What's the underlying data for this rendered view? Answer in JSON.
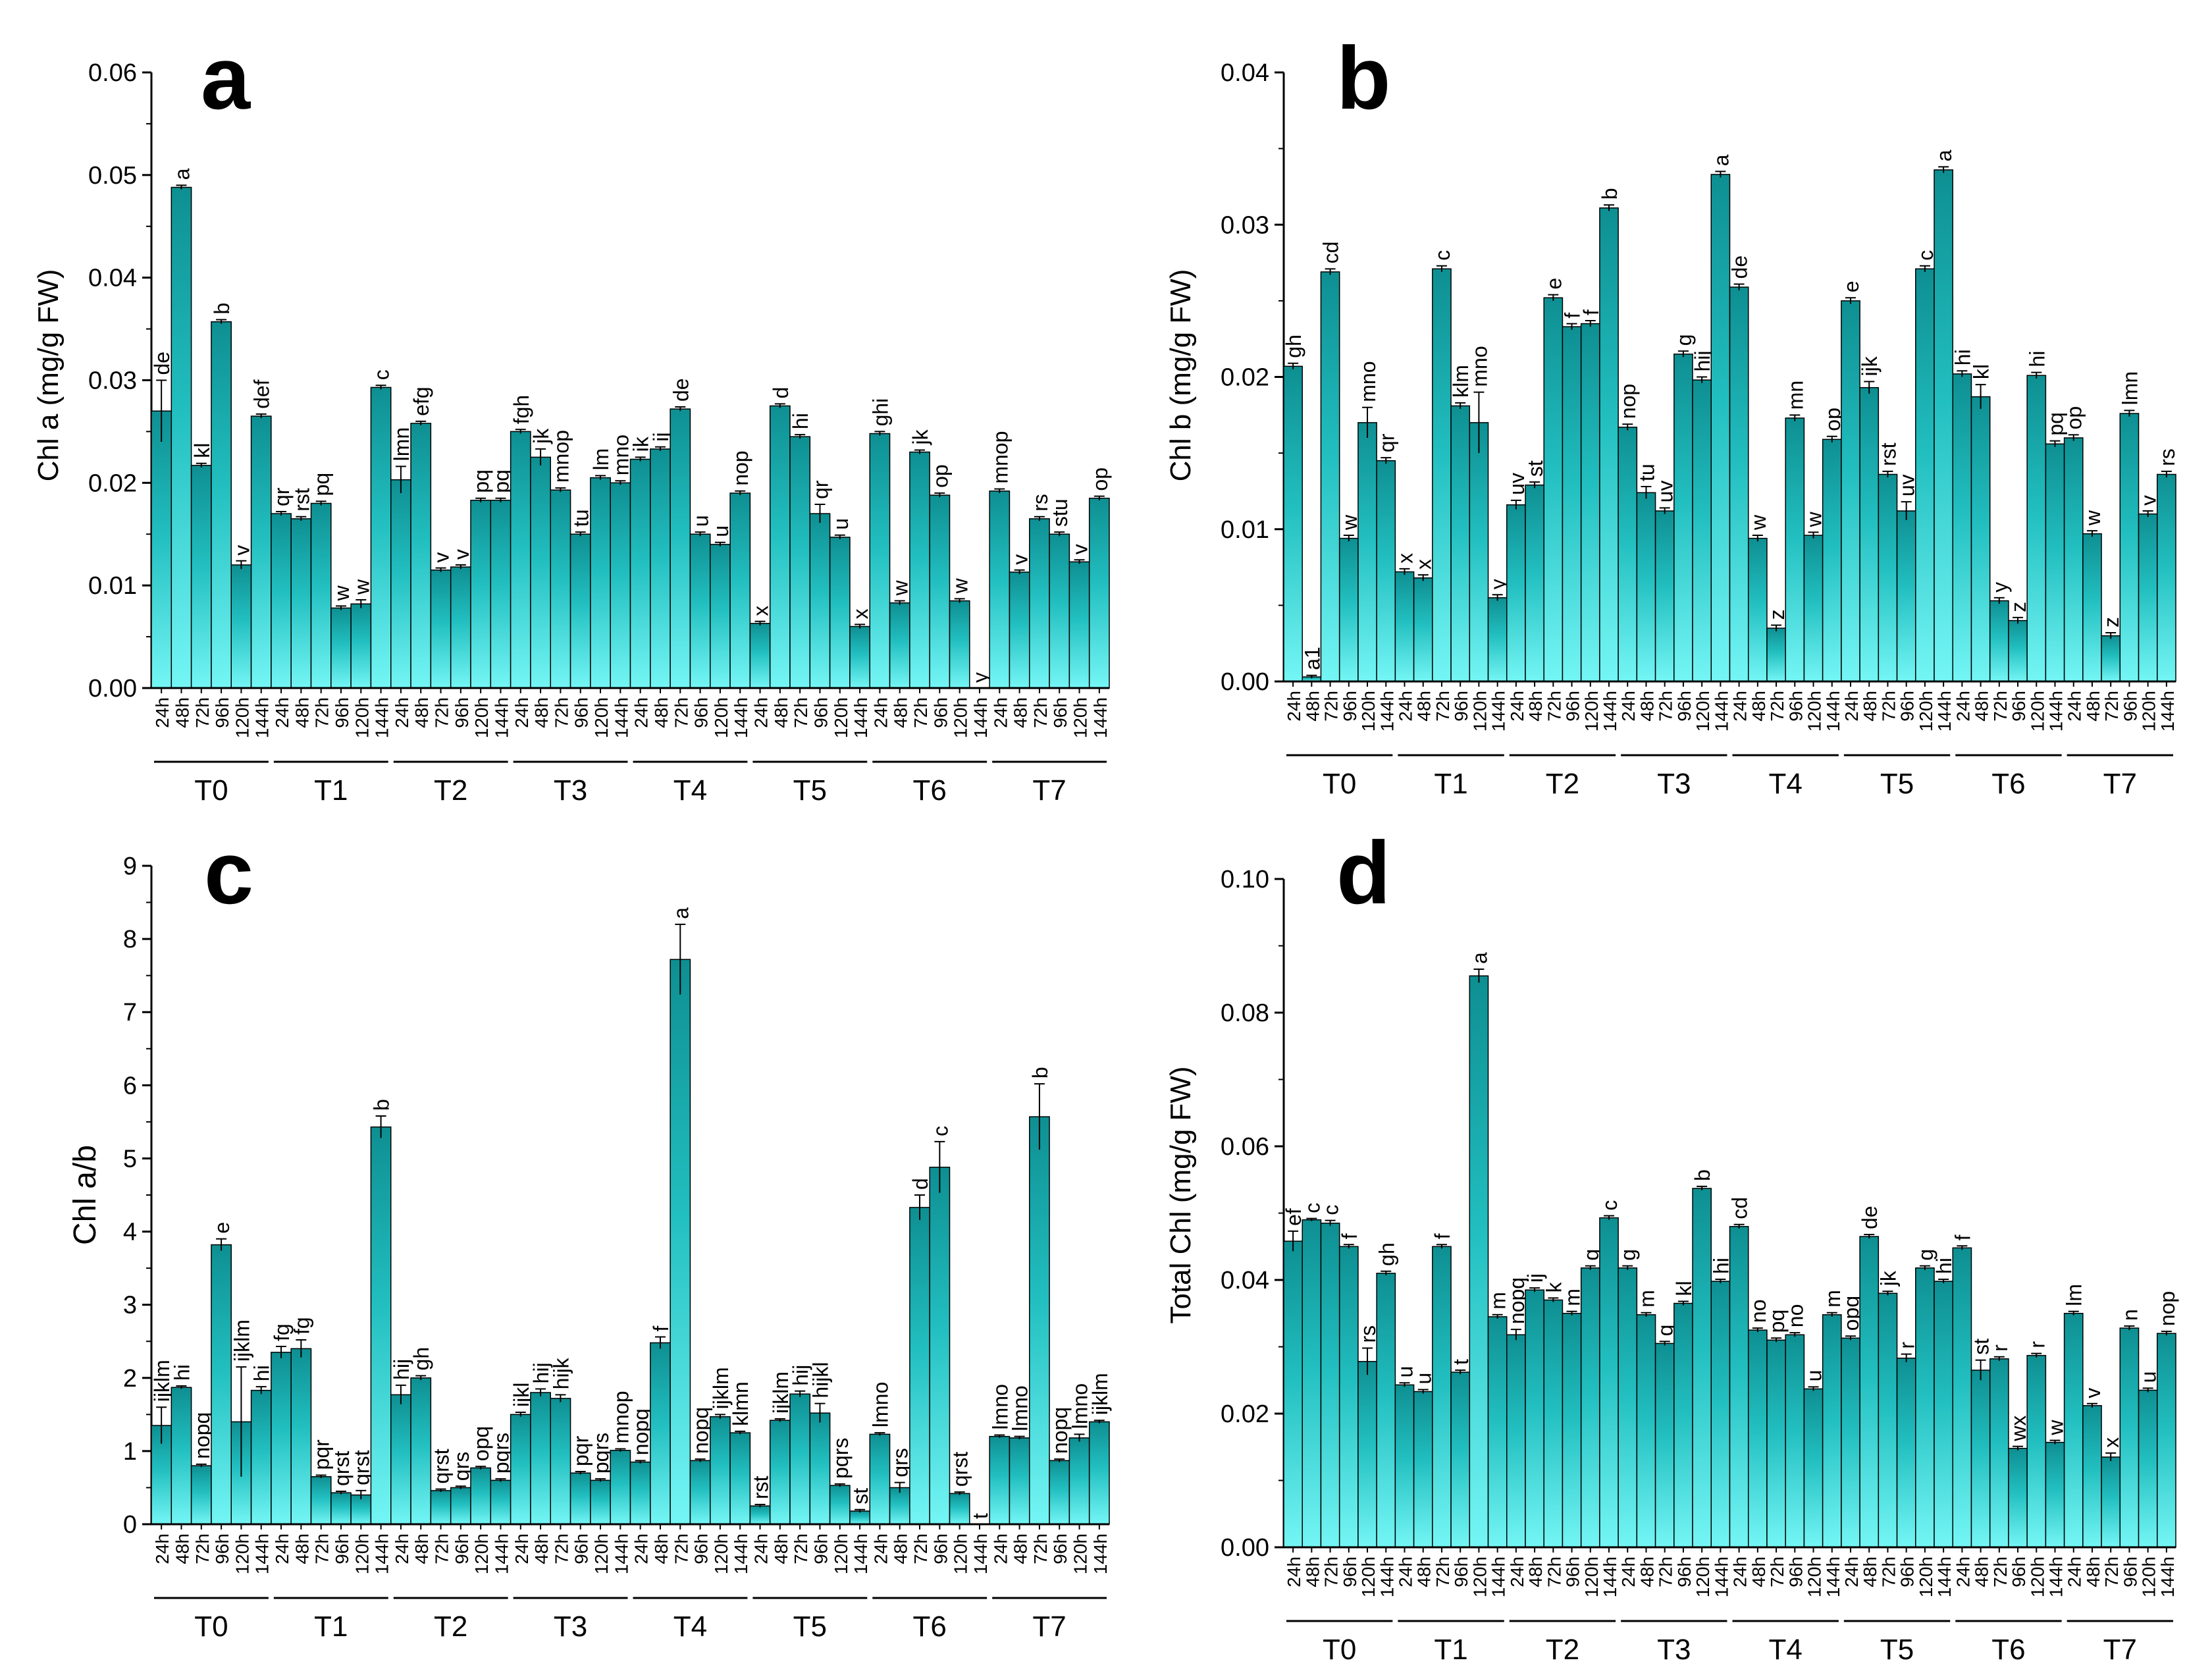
{
  "colors": {
    "bar_dark": "#0E8F92",
    "bar_mid": "#20B7B9",
    "bar_light": "#6FF2F2",
    "bar_stroke": "#000000",
    "axis": "#000000"
  },
  "chart_data": [
    {
      "panel": "a",
      "type": "bar",
      "ylabel": "Chl a (mg/g FW)",
      "ylim": [
        0,
        0.06
      ],
      "yticks": [
        "0.00",
        "0.01",
        "0.02",
        "0.03",
        "0.04",
        "0.05",
        "0.06"
      ],
      "groups": [
        "T0",
        "T1",
        "T2",
        "T3",
        "T4",
        "T5",
        "T6",
        "T7"
      ],
      "hours": [
        "24h",
        "48h",
        "72h",
        "96h",
        "120h",
        "144h"
      ],
      "values": [
        [
          0.027,
          0.0488,
          0.0217,
          0.0357,
          0.012,
          0.0265
        ],
        [
          0.017,
          0.0165,
          0.018,
          0.0078,
          0.0082,
          0.0293
        ],
        [
          0.0203,
          0.0258,
          0.0115,
          0.0118,
          0.0183,
          0.0183
        ],
        [
          0.025,
          0.0225,
          0.0193,
          0.015,
          0.0205,
          0.02
        ],
        [
          0.0223,
          0.0233,
          0.0272,
          0.015,
          0.014,
          0.019
        ],
        [
          0.0063,
          0.0275,
          0.0245,
          0.017,
          0.0147,
          0.006
        ],
        [
          0.0248,
          0.0083,
          0.023,
          0.0188,
          0.0085,
          0.0
        ],
        [
          0.0192,
          0.0113,
          0.0165,
          0.015,
          0.0123,
          0.0185
        ]
      ],
      "errors": [
        [
          0.003,
          0.0002,
          0.0002,
          0.0002,
          0.0004,
          0.0002
        ],
        [
          0.0002,
          0.0002,
          0.0002,
          0.0002,
          0.0004,
          0.0002
        ],
        [
          0.0013,
          0.0002,
          0.0002,
          0.0002,
          0.0002,
          0.0002
        ],
        [
          0.0002,
          0.0008,
          0.0002,
          0.0002,
          0.0002,
          0.0002
        ],
        [
          0.0002,
          0.0002,
          0.0002,
          0.0002,
          0.0002,
          0.0002
        ],
        [
          0.0002,
          0.0002,
          0.0002,
          0.0009,
          0.0002,
          0.0002
        ],
        [
          0.0002,
          0.0002,
          0.0002,
          0.0002,
          0.0002,
          0.0
        ],
        [
          0.0002,
          0.0002,
          0.0002,
          0.0002,
          0.0002,
          0.0002
        ]
      ],
      "letters": [
        [
          "de",
          "a",
          "kl",
          "b",
          "v",
          "def"
        ],
        [
          "qr",
          "rst",
          "pq",
          "w",
          "w",
          "c"
        ],
        [
          "lmn",
          "efg",
          "v",
          "v",
          "pq",
          "pq"
        ],
        [
          "fgh",
          "jk",
          "mnop",
          "tu",
          "lm",
          "mno"
        ],
        [
          "ik",
          "ij",
          "de",
          "u",
          "u",
          "nop"
        ],
        [
          "x",
          "d",
          "hi",
          "qr",
          "u",
          "x"
        ],
        [
          "ghi",
          "w",
          "jk",
          "op",
          "w",
          "y"
        ],
        [
          "mnop",
          "v",
          "rs",
          "stu",
          "v",
          "op"
        ]
      ]
    },
    {
      "panel": "b",
      "type": "bar",
      "ylabel": "Chl b (mg/g FW)",
      "ylim": [
        0,
        0.04
      ],
      "yticks": [
        "0.00",
        "0.01",
        "0.02",
        "0.03",
        "0.04"
      ],
      "groups": [
        "T0",
        "T1",
        "T2",
        "T3",
        "T4",
        "T5",
        "T6",
        "T7"
      ],
      "hours": [
        "24h",
        "48h",
        "72h",
        "96h",
        "120h",
        "144h"
      ],
      "values": [
        [
          0.0207,
          0.0003,
          0.0269,
          0.0094,
          0.017,
          0.0145
        ],
        [
          0.0072,
          0.0068,
          0.0271,
          0.0181,
          0.017,
          0.0055
        ],
        [
          0.0116,
          0.0129,
          0.0252,
          0.0233,
          0.0235,
          0.0311
        ],
        [
          0.0167,
          0.0124,
          0.0112,
          0.0215,
          0.0198,
          0.0333
        ],
        [
          0.0259,
          0.0094,
          0.0035,
          0.0173,
          0.0096,
          0.0159
        ],
        [
          0.025,
          0.0193,
          0.0136,
          0.0112,
          0.0271,
          0.0336
        ],
        [
          0.0202,
          0.0187,
          0.0053,
          0.004,
          0.0201,
          0.0156
        ],
        [
          0.016,
          0.0097,
          0.003,
          0.0176,
          0.011,
          0.0136
        ]
      ],
      "errors": [
        [
          0.0002,
          0.0001,
          0.0002,
          0.0002,
          0.001,
          0.0002
        ],
        [
          0.0002,
          0.0002,
          0.0002,
          0.0002,
          0.002,
          0.0002
        ],
        [
          0.0003,
          0.0002,
          0.0002,
          0.0002,
          0.0002,
          0.0002
        ],
        [
          0.0002,
          0.0004,
          0.0002,
          0.0002,
          0.0002,
          0.0002
        ],
        [
          0.0002,
          0.0002,
          0.0002,
          0.0002,
          0.0002,
          0.0002
        ],
        [
          0.0002,
          0.0004,
          0.0002,
          0.0006,
          0.0002,
          0.0002
        ],
        [
          0.0002,
          0.0008,
          0.0002,
          0.0002,
          0.0002,
          0.0002
        ],
        [
          0.0002,
          0.0002,
          0.0002,
          0.0002,
          0.0002,
          0.0002
        ]
      ],
      "letters": [
        [
          "gh",
          "a1",
          "cd",
          "w",
          "mno",
          "qr"
        ],
        [
          "x",
          "x",
          "c",
          "klm",
          "mno",
          "y"
        ],
        [
          "uv",
          "st",
          "e",
          "f",
          "f",
          "b"
        ],
        [
          "nop",
          "tu",
          "uv",
          "g",
          "hij",
          "a"
        ],
        [
          "de",
          "w",
          "z",
          "mn",
          "w",
          "op"
        ],
        [
          "e",
          "ijk",
          "rst",
          "uv",
          "c",
          "a"
        ],
        [
          "hi",
          "kl",
          "y",
          "z",
          "hi",
          "pq"
        ],
        [
          "op",
          "w",
          "z",
          "lmn",
          "v",
          "rs"
        ]
      ]
    },
    {
      "panel": "c",
      "type": "bar",
      "ylabel": "Chl a/b",
      "ylim": [
        0,
        9
      ],
      "yticks": [
        "0",
        "1",
        "2",
        "3",
        "4",
        "5",
        "6",
        "7",
        "8",
        "9"
      ],
      "groups": [
        "T0",
        "T1",
        "T2",
        "T3",
        "T4",
        "T5",
        "T6",
        "T7"
      ],
      "hours": [
        "24h",
        "48h",
        "72h",
        "96h",
        "120h",
        "144h"
      ],
      "values": [
        [
          1.35,
          1.87,
          0.8,
          3.82,
          1.4,
          1.83
        ],
        [
          2.35,
          2.4,
          0.65,
          0.43,
          0.4,
          5.43
        ],
        [
          1.77,
          2.0,
          0.46,
          0.5,
          0.77,
          0.6
        ],
        [
          1.5,
          1.8,
          1.72,
          0.7,
          0.6,
          1.01
        ],
        [
          0.85,
          2.48,
          7.72,
          0.87,
          1.47,
          1.25
        ],
        [
          0.25,
          1.42,
          1.78,
          1.52,
          0.53,
          0.18
        ],
        [
          1.23,
          0.5,
          4.33,
          4.88,
          0.42,
          0.0
        ],
        [
          1.2,
          1.18,
          5.57,
          0.87,
          1.18,
          1.4
        ]
      ],
      "errors": [
        [
          0.25,
          0.02,
          0.02,
          0.08,
          0.75,
          0.05
        ],
        [
          0.08,
          0.12,
          0.02,
          0.02,
          0.06,
          0.15
        ],
        [
          0.13,
          0.03,
          0.02,
          0.02,
          0.02,
          0.02
        ],
        [
          0.03,
          0.05,
          0.05,
          0.02,
          0.02,
          0.02
        ],
        [
          0.02,
          0.08,
          0.48,
          0.02,
          0.03,
          0.02
        ],
        [
          0.02,
          0.02,
          0.04,
          0.13,
          0.02,
          0.02
        ],
        [
          0.02,
          0.07,
          0.17,
          0.35,
          0.02,
          0.0
        ],
        [
          0.02,
          0.02,
          0.45,
          0.02,
          0.05,
          0.02
        ]
      ],
      "letters": [
        [
          "ijklm",
          "hi",
          "nopq",
          "e",
          "ijklm",
          "hi"
        ],
        [
          "fg",
          "fg",
          "pqr",
          "qrst",
          "qrst",
          "b"
        ],
        [
          "hij",
          "gh",
          "qrst",
          "qrs",
          "opq",
          "pqrs"
        ],
        [
          "ijkl",
          "hij",
          "hijk",
          "pqr",
          "pqrs",
          "mnop"
        ],
        [
          "nopq",
          "f",
          "a",
          "nopq",
          "ijklm",
          "klmn"
        ],
        [
          "rst",
          "ijklm",
          "hij",
          "hijkl",
          "pqrs",
          "st"
        ],
        [
          "lmno",
          "qrs",
          "d",
          "c",
          "qrst",
          "t"
        ],
        [
          "lmno",
          "lmno",
          "b",
          "nopq",
          "lmno",
          "ijklm"
        ]
      ]
    },
    {
      "panel": "d",
      "type": "bar",
      "ylabel": "Total Chl (mg/g FW)",
      "ylim": [
        0,
        0.1
      ],
      "yticks": [
        "0.00",
        "0.02",
        "0.04",
        "0.06",
        "0.08",
        "0.10"
      ],
      "groups": [
        "T0",
        "T1",
        "T2",
        "T3",
        "T4",
        "T5",
        "T6",
        "T7"
      ],
      "hours": [
        "24h",
        "48h",
        "72h",
        "96h",
        "120h",
        "144h"
      ],
      "values": [
        [
          0.0458,
          0.049,
          0.0485,
          0.045,
          0.0278,
          0.041
        ],
        [
          0.0243,
          0.0233,
          0.045,
          0.0262,
          0.0855,
          0.0345
        ],
        [
          0.0318,
          0.0385,
          0.037,
          0.035,
          0.0418,
          0.0493
        ],
        [
          0.0418,
          0.0348,
          0.0305,
          0.0365,
          0.0537,
          0.0398
        ],
        [
          0.048,
          0.0325,
          0.031,
          0.0318,
          0.0237,
          0.0348
        ],
        [
          0.0313,
          0.0465,
          0.038,
          0.0283,
          0.0418,
          0.0398
        ],
        [
          0.0448,
          0.0265,
          0.0282,
          0.0148,
          0.0287,
          0.0157
        ],
        [
          0.035,
          0.0212,
          0.0135,
          0.0328,
          0.0235,
          0.032
        ]
      ],
      "errors": [
        [
          0.0015,
          0.0002,
          0.0004,
          0.0003,
          0.002,
          0.0003
        ],
        [
          0.0003,
          0.0003,
          0.0003,
          0.0003,
          0.001,
          0.0003
        ],
        [
          0.0008,
          0.0003,
          0.0003,
          0.0003,
          0.0003,
          0.0003
        ],
        [
          0.0003,
          0.0003,
          0.0003,
          0.0003,
          0.0003,
          0.0003
        ],
        [
          0.0003,
          0.0003,
          0.0003,
          0.0003,
          0.0003,
          0.0003
        ],
        [
          0.0003,
          0.0003,
          0.0003,
          0.0006,
          0.0003,
          0.0003
        ],
        [
          0.0003,
          0.0015,
          0.0003,
          0.0003,
          0.0003,
          0.0003
        ],
        [
          0.0003,
          0.0003,
          0.0006,
          0.0003,
          0.0003,
          0.0003
        ]
      ],
      "letters": [
        [
          "ef",
          "c",
          "c",
          "f",
          "rs",
          "gh"
        ],
        [
          "u",
          "u",
          "f",
          "t",
          "a",
          "m"
        ],
        [
          "nopq",
          "ij",
          "k",
          "m",
          "g",
          "c"
        ],
        [
          "g",
          "m",
          "q",
          "kl",
          "b",
          "hi"
        ],
        [
          "cd",
          "no",
          "pq",
          "no",
          "u",
          "m"
        ],
        [
          "opq",
          "de",
          "jk",
          "r",
          "g",
          "hi"
        ],
        [
          "f",
          "st",
          "r",
          "wx",
          "r",
          "w"
        ],
        [
          "lm",
          "v",
          "x",
          "n",
          "u",
          "nop"
        ]
      ]
    }
  ]
}
